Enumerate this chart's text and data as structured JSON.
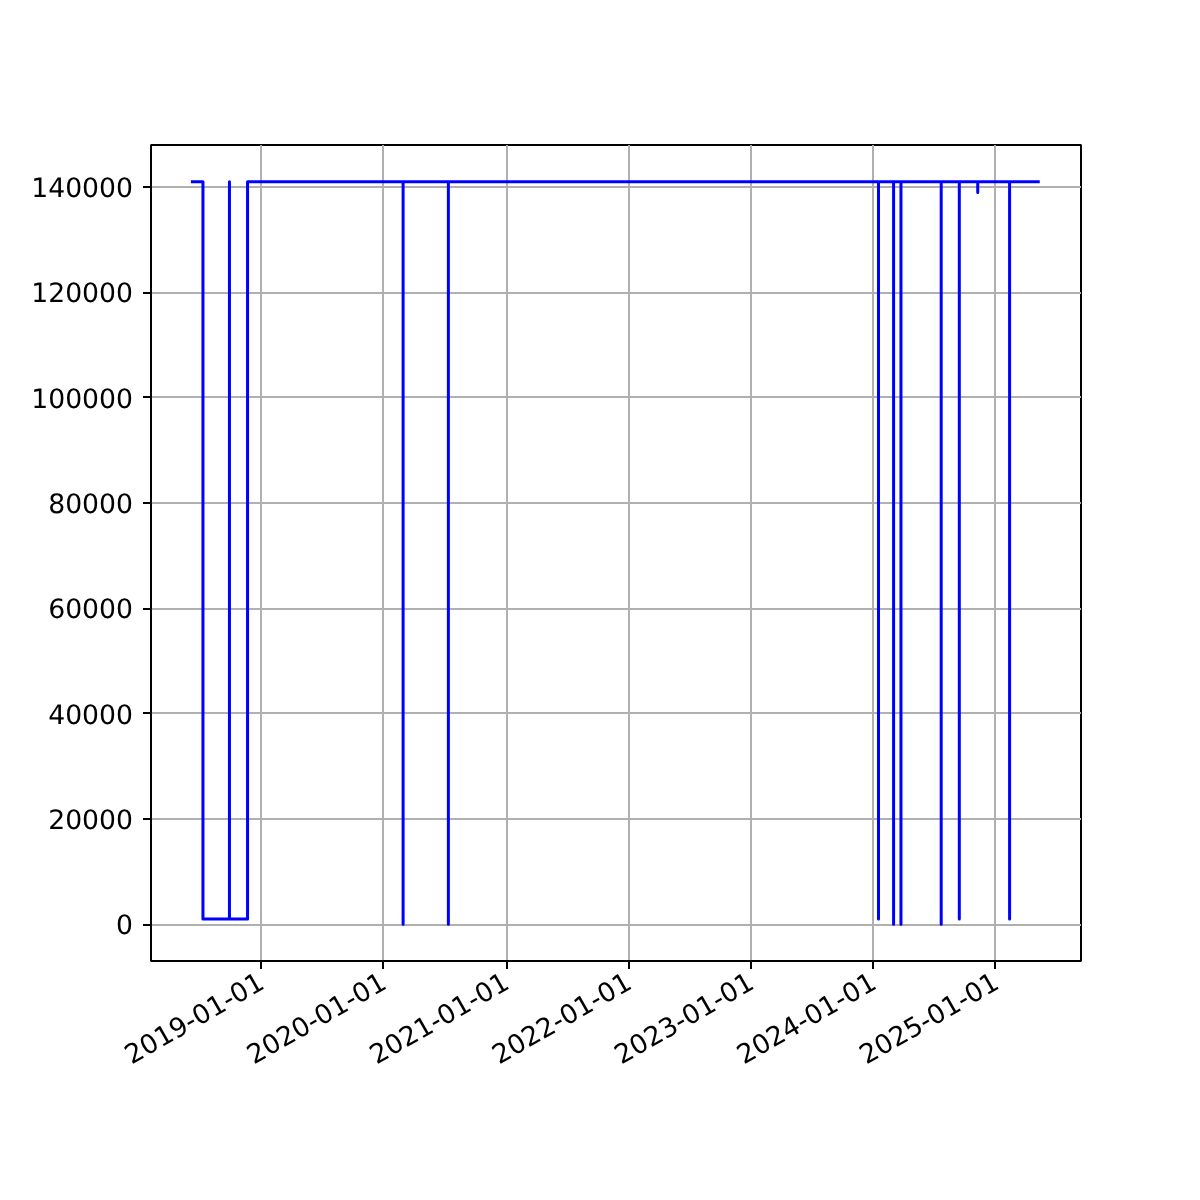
{
  "chart_data": {
    "type": "line",
    "x": [
      "2018-06-06",
      "2018-07-12",
      "2018-07-12",
      "2018-09-29",
      "2018-09-29",
      "2018-09-29",
      "2018-11-22",
      "2018-11-22",
      "2020-02-29",
      "2020-02-29",
      "2020-02-29",
      "2020-07-13",
      "2020-07-13",
      "2020-07-13",
      "2024-01-17",
      "2024-01-17",
      "2024-01-17",
      "2024-03-02",
      "2024-03-02",
      "2024-03-02",
      "2024-03-24",
      "2024-03-24",
      "2024-03-24",
      "2024-07-22",
      "2024-07-22",
      "2024-07-22",
      "2024-09-14",
      "2024-09-14",
      "2024-09-14",
      "2024-11-08",
      "2024-11-08",
      "2024-11-08",
      "2025-02-11",
      "2025-02-11",
      "2025-02-11",
      "2025-05-12"
    ],
    "series": [
      {
        "color": "#0000ff",
        "values": [
          141000,
          141000,
          1000,
          1000,
          141000,
          1000,
          1000,
          141000,
          141000,
          0,
          141000,
          141000,
          0,
          141000,
          141000,
          1000,
          141000,
          141000,
          0,
          141000,
          141000,
          0,
          141000,
          141000,
          0,
          141000,
          141000,
          1000,
          141000,
          141000,
          139000,
          141000,
          141000,
          1000,
          141000,
          141000
        ]
      }
    ],
    "xlim": [
      "2018-02-07",
      "2025-09-12"
    ],
    "xticks": [
      "2019-01-01",
      "2020-01-01",
      "2021-01-01",
      "2022-01-01",
      "2023-01-01",
      "2024-01-01",
      "2025-01-01"
    ],
    "ylim": [
      -7000,
      148000
    ],
    "yticks": [
      0,
      20000,
      40000,
      60000,
      80000,
      100000,
      120000,
      140000
    ],
    "grid": true,
    "line_style": "solid",
    "marker": "none"
  }
}
